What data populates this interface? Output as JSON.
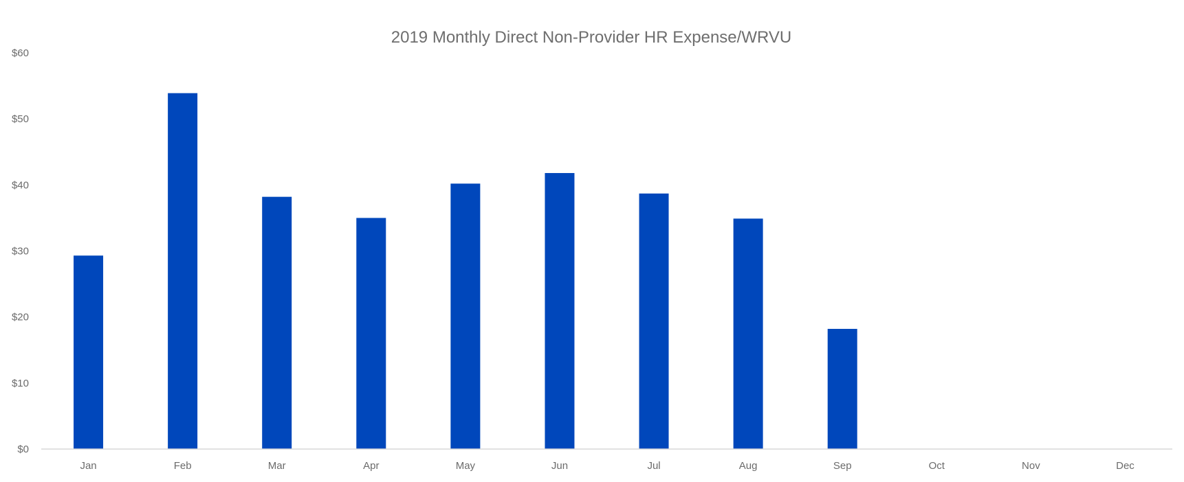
{
  "chart_data": {
    "type": "bar",
    "title": "2019 Monthly Direct Non-Provider HR Expense/WRVU",
    "xlabel": "",
    "ylabel": "",
    "categories": [
      "Jan",
      "Feb",
      "Mar",
      "Apr",
      "May",
      "Jun",
      "Jul",
      "Aug",
      "Sep",
      "Oct",
      "Nov",
      "Dec"
    ],
    "series": [
      {
        "values": [
          29.3,
          53.9,
          38.2,
          35.0,
          40.2,
          41.8,
          38.7,
          34.9,
          18.2,
          null,
          null,
          null
        ],
        "color": "#0047bb"
      }
    ],
    "ylim": [
      0,
      60
    ],
    "yticks": [
      0,
      10,
      20,
      30,
      40,
      50,
      60
    ],
    "ytick_labels": [
      "$0",
      "$10",
      "$20",
      "$30",
      "$40",
      "$50",
      "$60"
    ],
    "grid": false,
    "legend": "none",
    "axis_color": "#d9d9d9"
  }
}
